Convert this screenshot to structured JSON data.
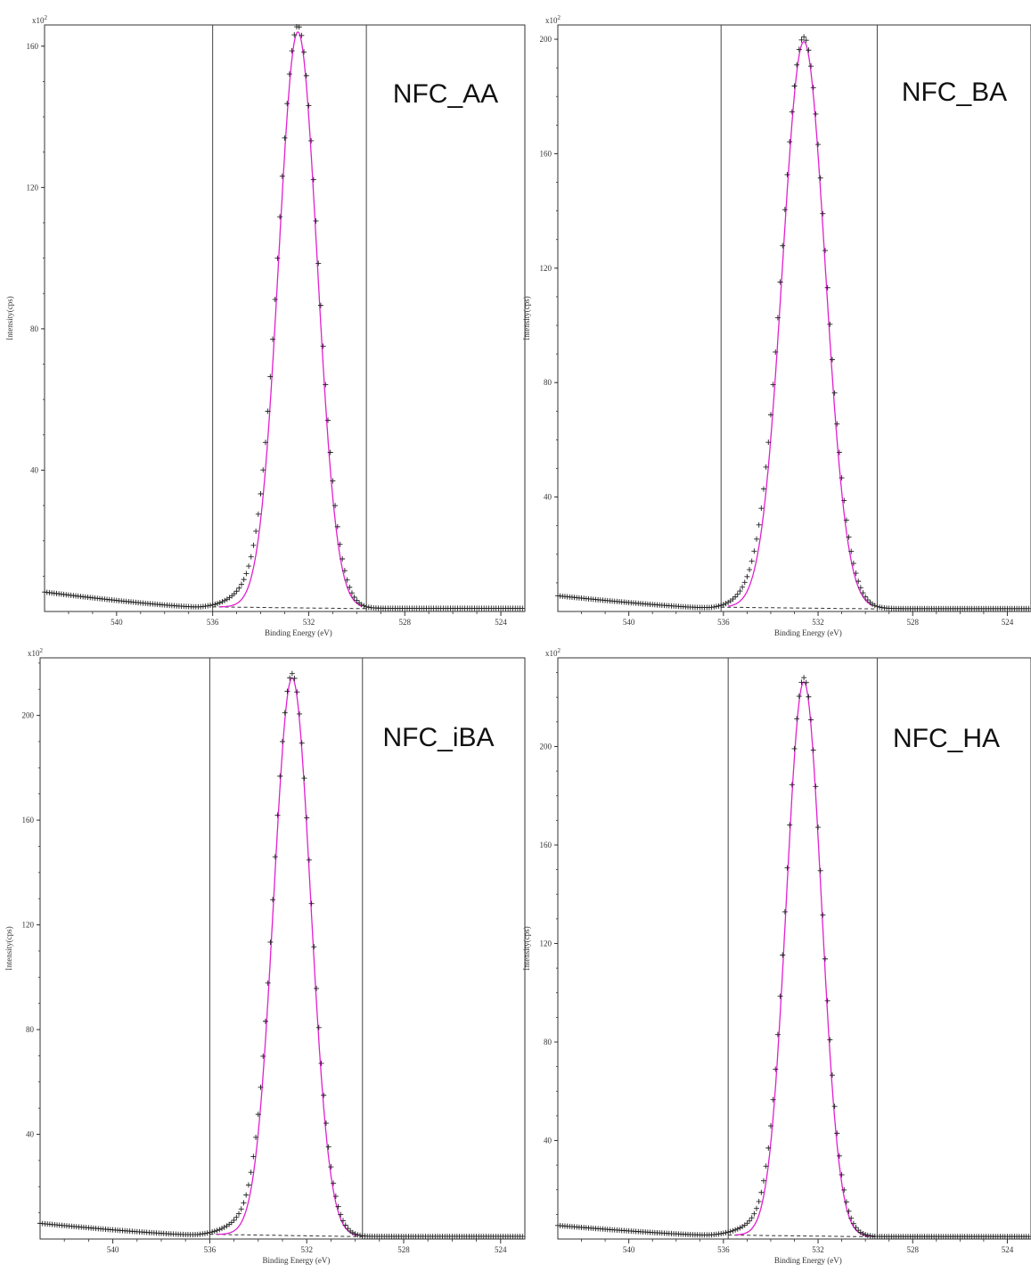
{
  "colors": {
    "fit": "#e020d0",
    "data": "#222222",
    "background_line": "#333333",
    "frame": "#333333"
  },
  "chart_data": [
    {
      "type": "scatter",
      "title": "",
      "label": "NFC_AA",
      "xlabel": "Binding Energy (eV)",
      "ylabel": "Intensity(cps)",
      "y_multiplier_label": "x10",
      "y_multiplier_exp": "2",
      "xlim": [
        543,
        523
      ],
      "ylim": [
        0,
        166
      ],
      "x_ticks": [
        540,
        536,
        532,
        528,
        524
      ],
      "y_ticks": [
        40,
        80,
        120,
        160
      ],
      "region": [
        536,
        529.6
      ],
      "series": [
        {
          "role": "data",
          "peak_center": 532.45,
          "peak_height": 164,
          "sigma": 0.83,
          "shoulder": 3.5,
          "baseline_left": 5.5,
          "baseline_right": 0.9,
          "valley": 1.2
        },
        {
          "role": "fit",
          "peak_center": 532.45,
          "peak_height": 163,
          "sigma": 0.8,
          "baseline_left": 1.3,
          "baseline_right": 0.8
        }
      ]
    },
    {
      "type": "scatter",
      "title": "",
      "label": "NFC_BA",
      "xlabel": "Binding Energy (eV)",
      "ylabel": "Intensity(cps)",
      "y_multiplier_label": "x10",
      "y_multiplier_exp": "2",
      "xlim": [
        543,
        523
      ],
      "ylim": [
        0,
        205
      ],
      "x_ticks": [
        540,
        536,
        532,
        528,
        524
      ],
      "y_ticks": [
        40,
        80,
        120,
        160,
        200
      ],
      "region": [
        536.1,
        529.5
      ],
      "series": [
        {
          "role": "data",
          "peak_center": 532.6,
          "peak_height": 199,
          "sigma": 0.93,
          "shoulder": 4,
          "baseline_left": 5.5,
          "baseline_right": 1,
          "valley": 1.2
        },
        {
          "role": "fit",
          "peak_center": 532.6,
          "peak_height": 198,
          "sigma": 0.9,
          "baseline_left": 1.5,
          "baseline_right": 0.9
        }
      ]
    },
    {
      "type": "scatter",
      "title": "",
      "label": "NFC_iBA",
      "xlabel": "Binding Energy (eV)",
      "ylabel": "Intensity(cps)",
      "y_multiplier_label": "x10",
      "y_multiplier_exp": "2",
      "xlim": [
        543,
        523
      ],
      "ylim": [
        0,
        222
      ],
      "x_ticks": [
        540,
        536,
        532,
        528,
        524
      ],
      "y_ticks": [
        40,
        80,
        120,
        160,
        200
      ],
      "region": [
        536,
        529.7
      ],
      "series": [
        {
          "role": "data",
          "peak_center": 532.6,
          "peak_height": 214,
          "sigma": 0.78,
          "shoulder": 4,
          "baseline_left": 6,
          "baseline_right": 1,
          "valley": 1.5
        },
        {
          "role": "fit",
          "peak_center": 532.6,
          "peak_height": 213,
          "sigma": 0.76,
          "baseline_left": 1.8,
          "baseline_right": 0.9
        }
      ]
    },
    {
      "type": "scatter",
      "title": "",
      "label": "NFC_HA",
      "xlabel": "Binding Energy (eV)",
      "ylabel": "Intensity(cps)",
      "y_multiplier_label": "x10",
      "y_multiplier_exp": "2",
      "xlim": [
        543,
        523
      ],
      "ylim": [
        0,
        236
      ],
      "x_ticks": [
        540,
        536,
        532,
        528,
        524
      ],
      "y_ticks": [
        40,
        80,
        120,
        160,
        200
      ],
      "region": [
        535.8,
        529.5
      ],
      "series": [
        {
          "role": "data",
          "peak_center": 532.6,
          "peak_height": 226,
          "sigma": 0.76,
          "shoulder": 3.5,
          "baseline_left": 5.5,
          "baseline_right": 1,
          "valley": 1.5
        },
        {
          "role": "fit",
          "peak_center": 532.6,
          "peak_height": 225,
          "sigma": 0.74,
          "baseline_left": 1.6,
          "baseline_right": 0.9
        }
      ]
    }
  ]
}
